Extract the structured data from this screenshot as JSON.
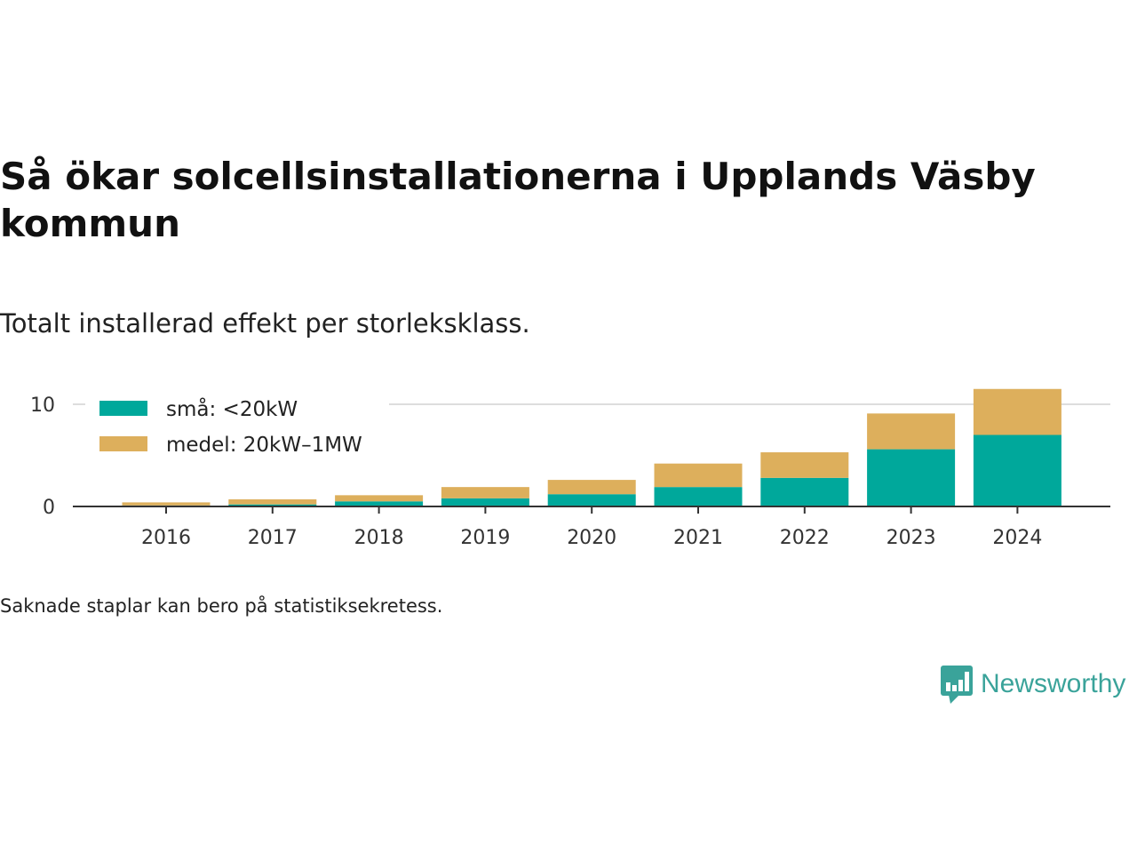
{
  "title": "Så ökar solcellsinstallationerna i Upplands Väsby kommun",
  "subtitle": "Totalt installerad effekt per storleksklass.",
  "footnote": "Saknade staplar kan bero på statistiksekretess.",
  "brand": {
    "name": "Newsworthy",
    "icon": "bar-chart-speech-bubble-icon",
    "color": "#3aa39a"
  },
  "chart_data": {
    "type": "bar",
    "stacked": true,
    "categories": [
      "2016",
      "2017",
      "2018",
      "2019",
      "2020",
      "2021",
      "2022",
      "2023",
      "2024"
    ],
    "series": [
      {
        "name": "små: <20kW",
        "color": "#00a89b",
        "values": [
          0.1,
          0.2,
          0.5,
          0.8,
          1.2,
          1.9,
          2.8,
          5.6,
          7.0
        ]
      },
      {
        "name": "medel: 20kW–1MW",
        "color": "#ddaf5c",
        "values": [
          0.3,
          0.5,
          0.6,
          1.1,
          1.4,
          2.3,
          2.5,
          3.5,
          4.5
        ]
      }
    ],
    "yticks": [
      0,
      10
    ],
    "ylim": [
      0,
      11.5
    ],
    "grid": true,
    "legend": "top-left",
    "title": "",
    "xlabel": "",
    "ylabel": ""
  }
}
